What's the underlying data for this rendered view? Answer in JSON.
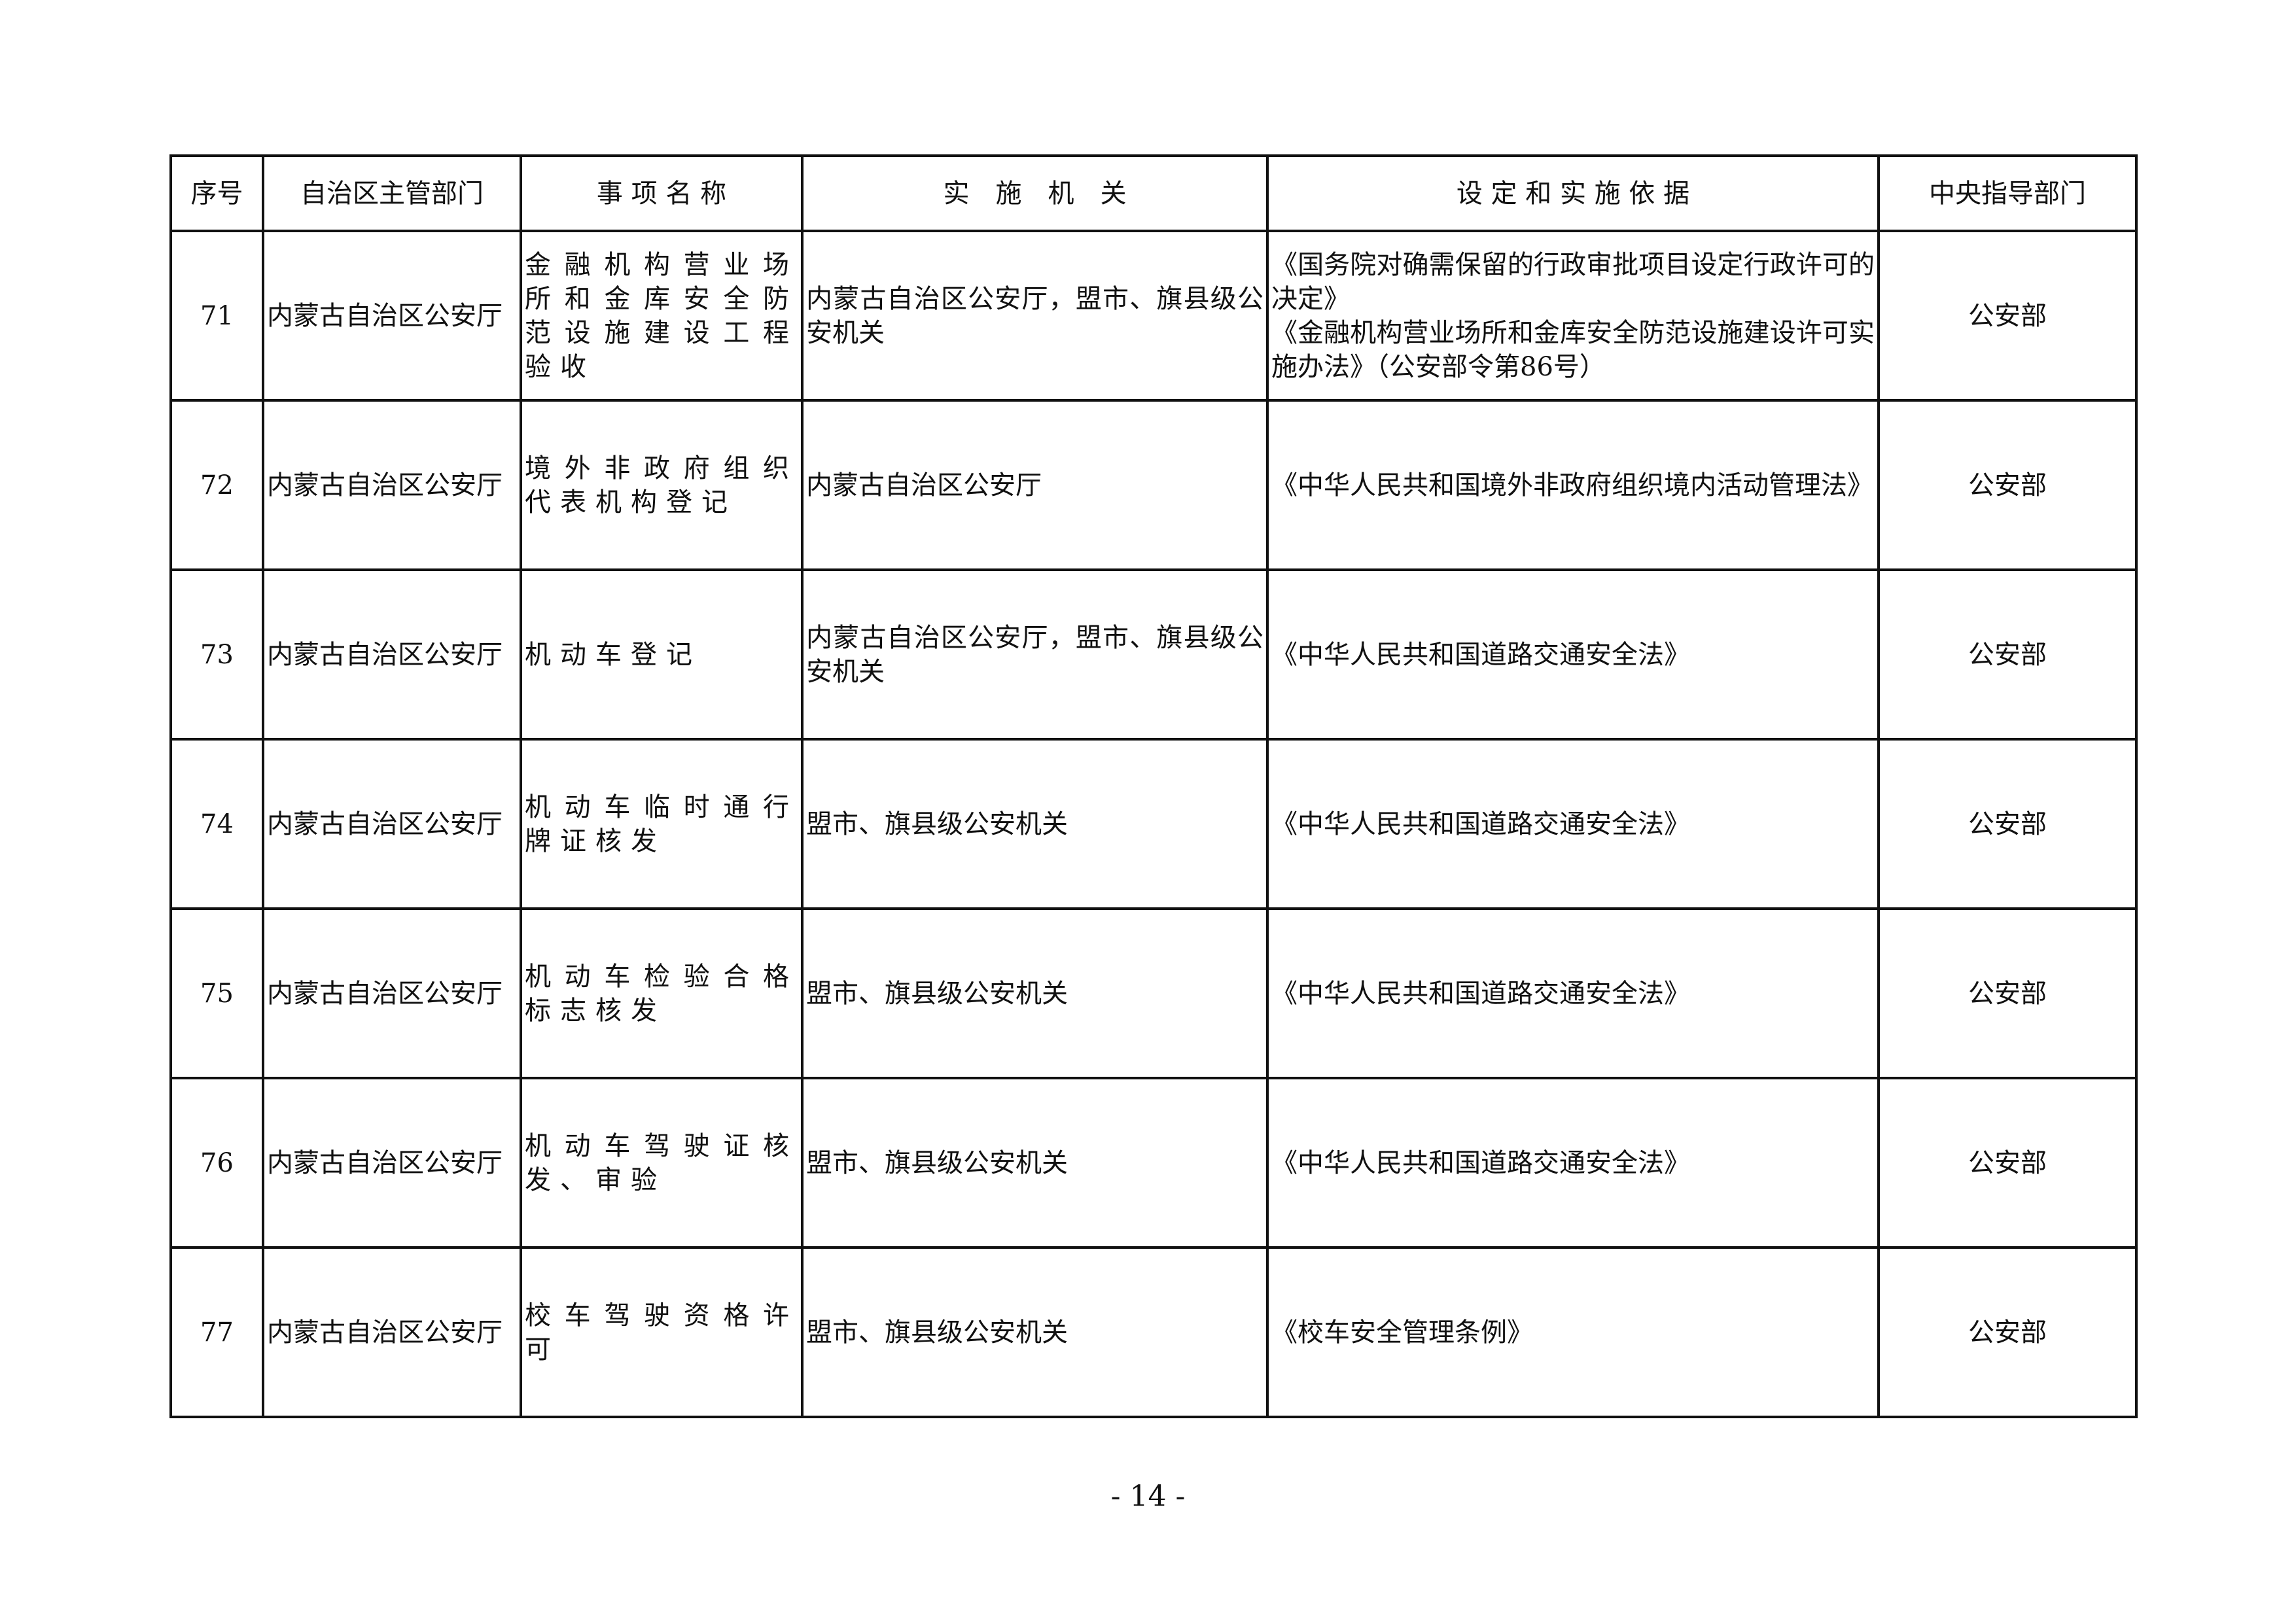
{
  "headers": [
    "序号",
    "自治区主管部门",
    "事 项 名 称",
    "实　施　机　关",
    "设 定 和 实 施 依 据",
    "中央指导部门"
  ],
  "rows": [
    {
      "no": "71",
      "dept": "内蒙古自治区公安厅",
      "item": "金融机构营业场所和金库安全防范设施建设工程验收",
      "agency": "内蒙古自治区公安厅，盟市、旗县级公安机关",
      "basis": [
        "《国务院对确需保留的行政审批项目设定行政许可的决定》",
        "《金融机构营业场所和金库安全防范设施建设许可实施办法》（公安部令第86号）"
      ],
      "central": "公安部"
    },
    {
      "no": "72",
      "dept": "内蒙古自治区公安厅",
      "item": "境外非政府组织代表机构登记",
      "agency": "内蒙古自治区公安厅",
      "basis": [
        "《中华人民共和国境外非政府组织境内活动管理法》"
      ],
      "central": "公安部"
    },
    {
      "no": "73",
      "dept": "内蒙古自治区公安厅",
      "item": "机动车登记",
      "agency": "内蒙古自治区公安厅，盟市、旗县级公安机关",
      "basis": [
        "《中华人民共和国道路交通安全法》"
      ],
      "central": "公安部"
    },
    {
      "no": "74",
      "dept": "内蒙古自治区公安厅",
      "item": "机动车临时通行牌证核发",
      "agency": "盟市、旗县级公安机关",
      "basis": [
        "《中华人民共和国道路交通安全法》"
      ],
      "central": "公安部"
    },
    {
      "no": "75",
      "dept": "内蒙古自治区公安厅",
      "item": "机动车检验合格标志核发",
      "agency": "盟市、旗县级公安机关",
      "basis": [
        "《中华人民共和国道路交通安全法》"
      ],
      "central": "公安部"
    },
    {
      "no": "76",
      "dept": "内蒙古自治区公安厅",
      "item": "机动车驾驶证核发、审验",
      "agency": "盟市、旗县级公安机关",
      "basis": [
        "《中华人民共和国道路交通安全法》"
      ],
      "central": "公安部"
    },
    {
      "no": "77",
      "dept": "内蒙古自治区公安厅",
      "item": "校车驾驶资格许可",
      "agency": "盟市、旗县级公安机关",
      "basis": [
        "《校车安全管理条例》"
      ],
      "central": "公安部"
    }
  ],
  "page_number": "- 14 -"
}
